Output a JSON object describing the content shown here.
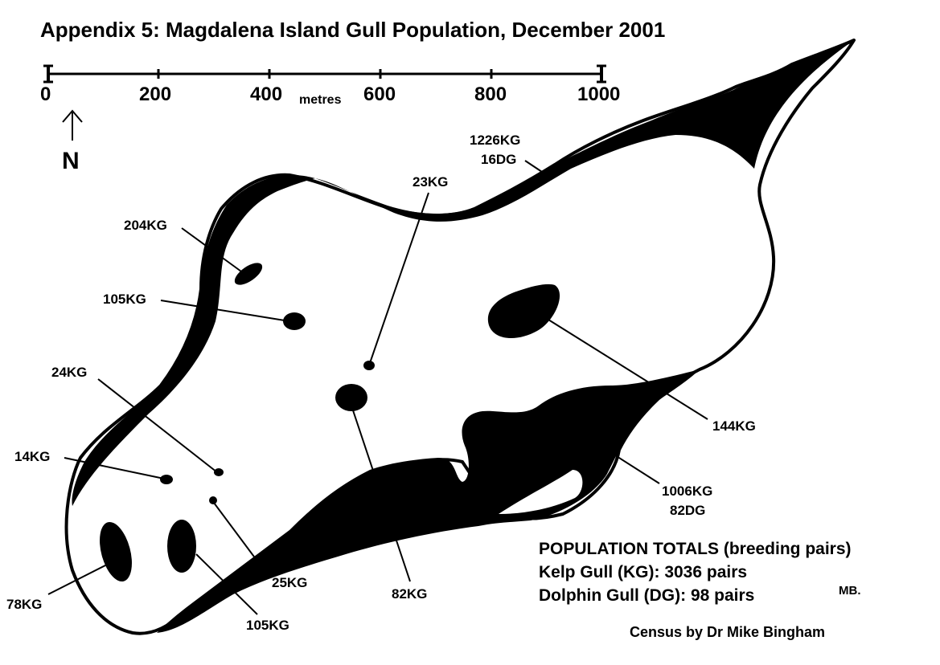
{
  "title": "Appendix 5:  Magdalena Island Gull Population,  December 2001",
  "scale": {
    "ticks": [
      "0",
      "200",
      "400",
      "600",
      "800",
      "1000"
    ],
    "unit": "metres"
  },
  "north": "N",
  "colonies": [
    {
      "label": "1226KG",
      "label2": "16DG"
    },
    {
      "label": "23KG"
    },
    {
      "label": "204KG"
    },
    {
      "label": "105KG"
    },
    {
      "label": "24KG"
    },
    {
      "label": "14KG"
    },
    {
      "label": "78KG"
    },
    {
      "label": "105KG"
    },
    {
      "label": "25KG"
    },
    {
      "label": "82KG"
    },
    {
      "label": "144KG"
    },
    {
      "label": "1006KG",
      "label2": "82DG"
    }
  ],
  "totals": {
    "heading": "POPULATION TOTALS (breeding pairs)",
    "kelp": "Kelp Gull  (KG):  3036 pairs",
    "dolphin": "Dolphin Gull (DG): 98 pairs"
  },
  "signature": "MB.",
  "credit": "Census by Dr Mike Bingham",
  "colors": {
    "ink": "#000000",
    "paper": "#ffffff"
  }
}
